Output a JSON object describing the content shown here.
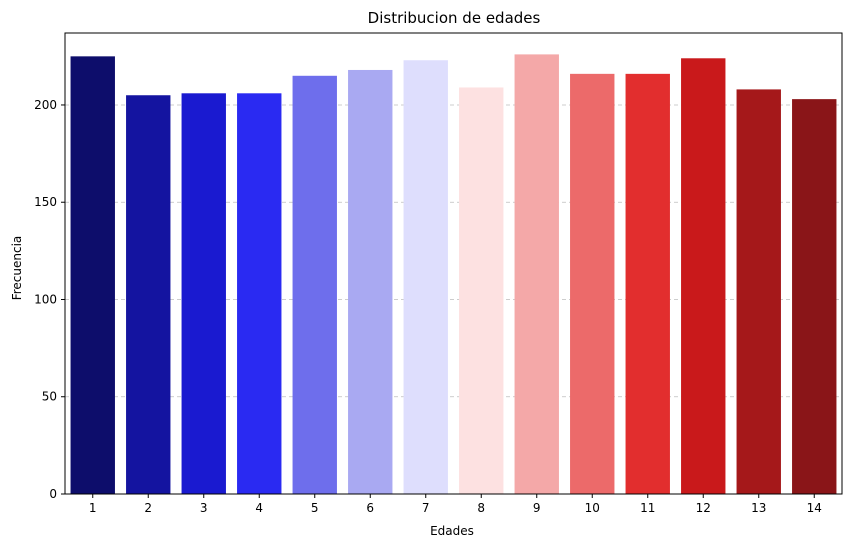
{
  "chart_data": {
    "type": "bar",
    "title": "Distribucion de edades",
    "xlabel": "Edades",
    "ylabel": "Frecuencia",
    "categories": [
      "1",
      "2",
      "3",
      "4",
      "5",
      "6",
      "7",
      "8",
      "9",
      "10",
      "11",
      "12",
      "13",
      "14"
    ],
    "values": [
      225,
      205,
      206,
      206,
      215,
      218,
      223,
      209,
      226,
      216,
      216,
      224,
      208,
      203
    ],
    "ylim": [
      0,
      237
    ],
    "yticks": [
      0,
      50,
      100,
      150,
      200
    ],
    "grid": "y-dashed",
    "legend": "none",
    "colors": [
      "#0d0d6b",
      "#1414a0",
      "#1a1ad0",
      "#2a2af2",
      "#6e6eec",
      "#a9a9f2",
      "#dedefd",
      "#fde1e1",
      "#f4a8a8",
      "#ec6a6a",
      "#e22e2e",
      "#c9191b",
      "#a5181a",
      "#8a1518"
    ],
    "gridColor": "#bdbdbd"
  }
}
